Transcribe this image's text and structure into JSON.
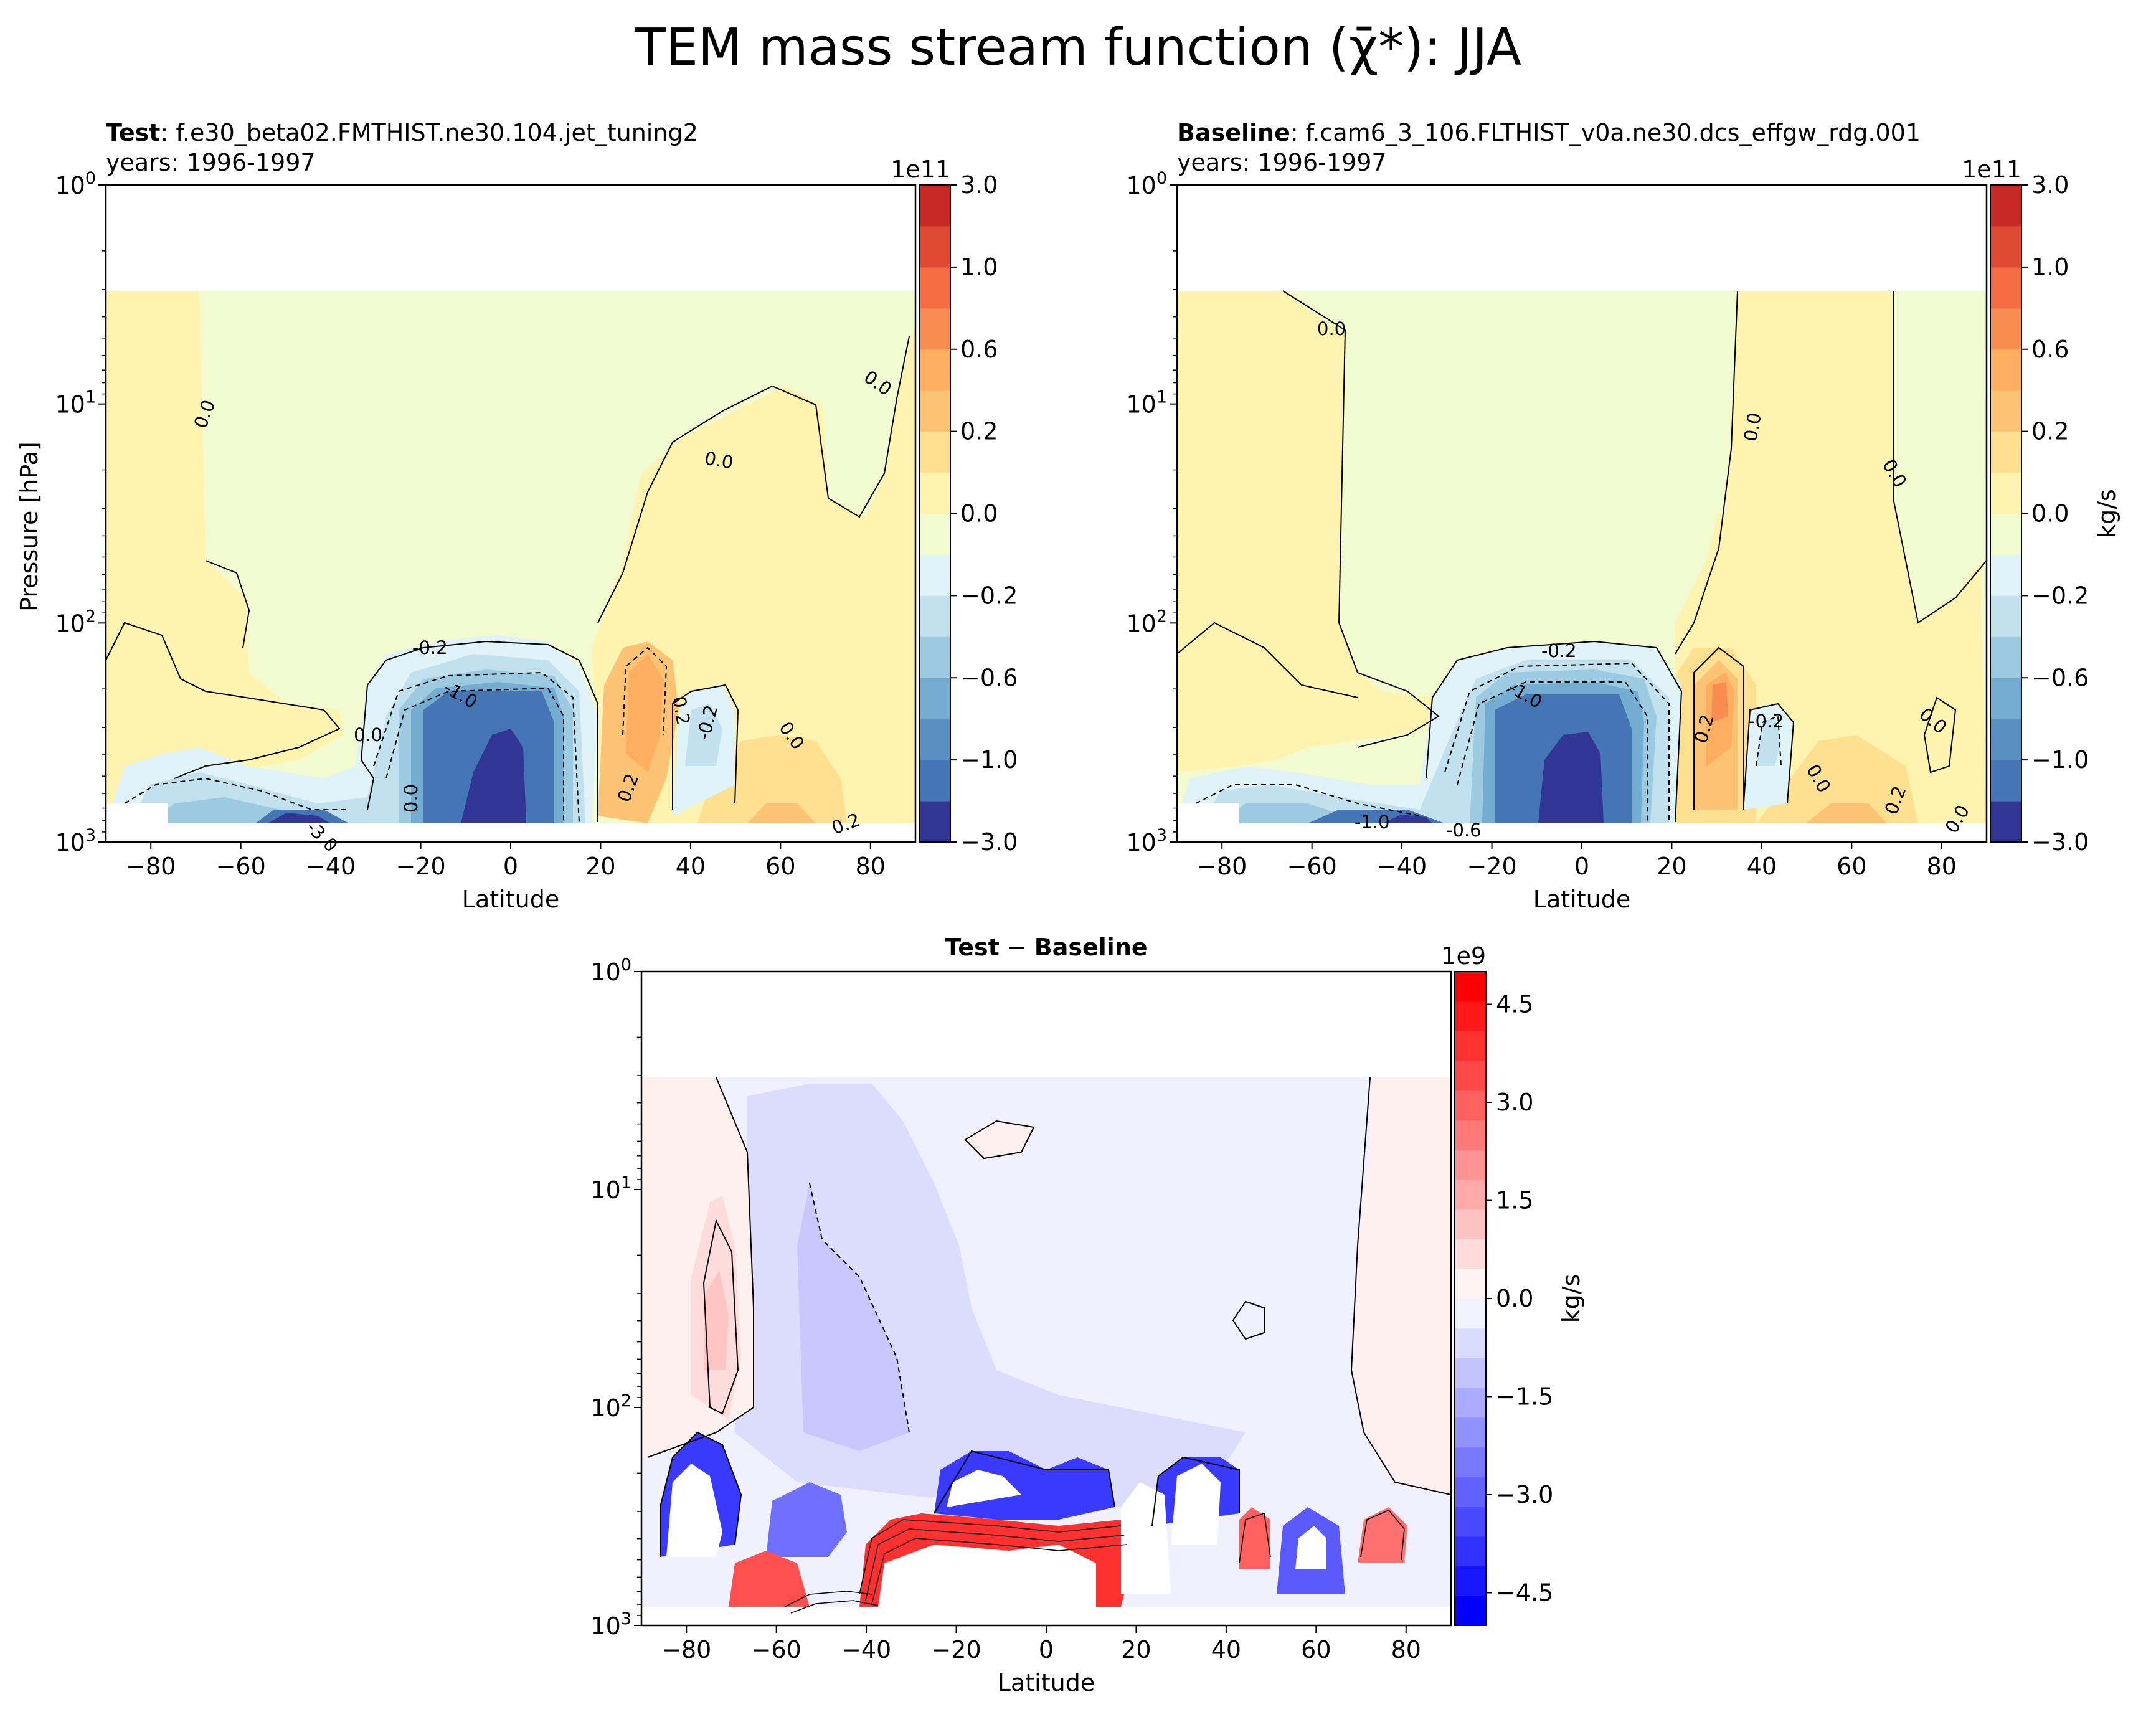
{
  "figure": {
    "suptitle": "TEM mass stream function (χ̄*): JJA"
  },
  "chart_data": [
    {
      "type": "contour",
      "panel": "test",
      "title_bold": "Test",
      "title_rest": ": f.e30_beta02.FMTHIST.ne30.104.jet_tuning2",
      "subtitle": "years: 1996-1997",
      "xlabel": "Latitude",
      "ylabel": "Pressure [hPa]",
      "xlim": [
        -90,
        90
      ],
      "ylim": [
        1000,
        1
      ],
      "yscale": "log",
      "xticks": [
        "−80",
        "−60",
        "−40",
        "−20",
        "0",
        "20",
        "40",
        "60",
        "80"
      ],
      "yticks": [
        "10^0",
        "10^1",
        "10^2",
        "10^3"
      ],
      "colormap": "RdYlBu_r",
      "colorbar": {
        "offset": "1e11",
        "levels": [
          -3.0,
          -1.5,
          -1.0,
          -0.8,
          -0.6,
          -0.4,
          -0.2,
          -0.1,
          0.0,
          0.1,
          0.2,
          0.4,
          0.6,
          0.8,
          1.0,
          1.5,
          3.0
        ],
        "tick_labels": [
          "3.0",
          "1.0",
          "0.6",
          "0.2",
          "0.0",
          "−0.2",
          "−0.6",
          "−1.0",
          "−3.0"
        ],
        "colors": [
          "#313695",
          "#4575b4",
          "#5a8fc2",
          "#74add1",
          "#9ccae1",
          "#c2e1ee",
          "#e0f3f8",
          "#f2fad0",
          "#fff3b0",
          "#fee090",
          "#fdc374",
          "#fdae61",
          "#f88d52",
          "#f46d43",
          "#e04a32",
          "#c72a26",
          "#a50026"
        ]
      },
      "contour_labels": [
        "0.0",
        "0.0",
        "0.0",
        "0.0",
        "-0.2",
        "-1.0",
        "0.0",
        "0.2",
        "-0.2",
        "0.0",
        "0.2",
        "0.2",
        "-3.0"
      ]
    },
    {
      "type": "contour",
      "panel": "baseline",
      "title_bold": "Baseline",
      "title_rest": ": f.cam6_3_106.FLTHIST_v0a.ne30.dcs_effgw_rdg.001",
      "subtitle": "years: 1996-1997",
      "xlabel": "Latitude",
      "xlim": [
        -90,
        90
      ],
      "ylim": [
        1000,
        1
      ],
      "yscale": "log",
      "xticks": [
        "−80",
        "−60",
        "−40",
        "−20",
        "0",
        "20",
        "40",
        "60",
        "80"
      ],
      "yticks": [
        "10^0",
        "10^1",
        "10^2",
        "10^3"
      ],
      "colormap": "RdYlBu_r",
      "colorbar": {
        "offset": "1e11",
        "label": "kg/s",
        "levels": [
          -3.0,
          -1.5,
          -1.0,
          -0.8,
          -0.6,
          -0.4,
          -0.2,
          -0.1,
          0.0,
          0.1,
          0.2,
          0.4,
          0.6,
          0.8,
          1.0,
          1.5,
          3.0
        ],
        "tick_labels": [
          "3.0",
          "1.0",
          "0.6",
          "0.2",
          "0.0",
          "−0.2",
          "−0.6",
          "−1.0",
          "−3.0"
        ]
      },
      "contour_labels": [
        "0.0",
        "0.0",
        "0.0",
        "-0.2",
        "-1.0",
        "0.2",
        "-0.2",
        "0.0",
        "0.0",
        "0.2",
        "-0.6",
        "-1.0",
        "0.0"
      ]
    },
    {
      "type": "contour",
      "panel": "difference",
      "title_bold1": "Test",
      "title_mid": " − ",
      "title_bold2": "Baseline",
      "xlabel": "Latitude",
      "xlim": [
        -90,
        90
      ],
      "ylim": [
        1000,
        1
      ],
      "yscale": "log",
      "xticks": [
        "−80",
        "−60",
        "−40",
        "−20",
        "0",
        "20",
        "40",
        "60",
        "80"
      ],
      "yticks": [
        "10^0",
        "10^1",
        "10^2",
        "10^3"
      ],
      "colormap": "bwr",
      "colorbar": {
        "offset": "1e9",
        "label": "kg/s",
        "tick_labels": [
          "4.5",
          "3.0",
          "1.5",
          "0.0",
          "−1.5",
          "−3.0",
          "−4.5"
        ],
        "range": [
          -5.0,
          5.0
        ]
      }
    }
  ]
}
